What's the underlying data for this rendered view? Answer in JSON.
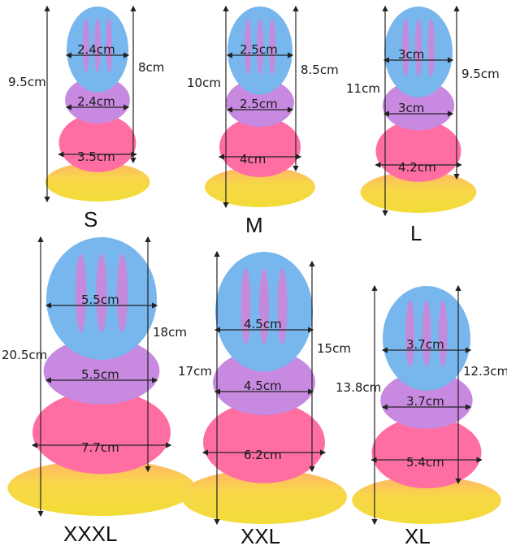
{
  "colors": {
    "tip": "#78b6ee",
    "mid": "#d77fd6",
    "base": "#ff6ea3",
    "suction": "#f5dd3a"
  },
  "products": [
    {
      "size": "S",
      "total": "9.5cm",
      "insertable": "8cm",
      "head_width": "2.4cm",
      "mid_width": "2.4cm",
      "base_width": "3.5cm"
    },
    {
      "size": "M",
      "total": "10cm",
      "insertable": "8.5cm",
      "head_width": "2.5cm",
      "mid_width": "2.5cm",
      "base_width": "4cm"
    },
    {
      "size": "L",
      "total": "11cm",
      "insertable": "9.5cm",
      "head_width": "3cm",
      "mid_width": "3cm",
      "base_width": "4.2cm"
    },
    {
      "size": "XXXL",
      "total": "20.5cm",
      "insertable": "18cm",
      "head_width": "5.5cm",
      "mid_width": "5.5cm",
      "base_width": "7.7cm"
    },
    {
      "size": "XXL",
      "total": "17cm",
      "insertable": "15cm",
      "head_width": "4.5cm",
      "mid_width": "4.5cm",
      "base_width": "6.2cm"
    },
    {
      "size": "XL",
      "total": "13.8cm",
      "insertable": "12.3cm",
      "head_width": "3.7cm",
      "mid_width": "3.7cm",
      "base_width": "5.4cm"
    }
  ]
}
